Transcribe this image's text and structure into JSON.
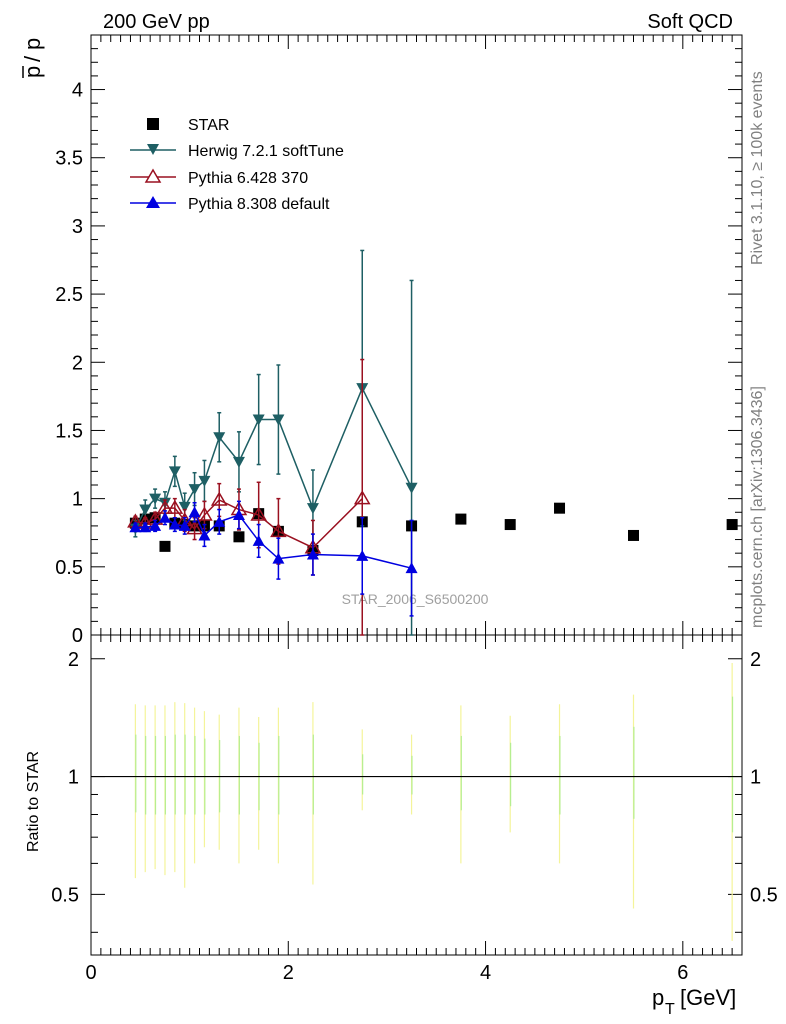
{
  "header": {
    "left": "200 GeV pp",
    "right": "Soft QCD"
  },
  "side": {
    "rivet": "Rivet 3.1.10, ≥ 100k events",
    "mcplots": "mcplots.cern.ch [arXiv:1306.3436]"
  },
  "watermark": "STAR_2006_S6500200",
  "chart_data": [
    {
      "type": "scatter",
      "ylabel_top": "p",
      "ylabel_bottom": "p",
      "ylabel_text": "p̅ / p",
      "xlim": [
        0,
        6.6
      ],
      "ylim": [
        0,
        4.4
      ],
      "yticks": [
        "0",
        "0.5",
        "1",
        "1.5",
        "2",
        "2.5",
        "3",
        "3.5",
        "4"
      ],
      "legend_position": "top-left",
      "series": [
        {
          "name": "STAR",
          "color": "#000000",
          "marker": "square",
          "x": [
            0.45,
            0.55,
            0.65,
            0.75,
            0.85,
            0.95,
            1.05,
            1.15,
            1.3,
            1.5,
            1.7,
            1.9,
            2.25,
            2.75,
            3.25,
            3.75,
            4.25,
            4.75,
            5.5,
            6.5
          ],
          "y": [
            0.82,
            0.85,
            0.86,
            0.65,
            0.82,
            0.81,
            0.8,
            0.8,
            0.8,
            0.72,
            0.89,
            0.76,
            0.62,
            0.83,
            0.8,
            0.85,
            0.81,
            0.93,
            0.73,
            0.81
          ]
        },
        {
          "name": "Herwig 7.2.1 softTune",
          "color": "#1e5f64",
          "marker": "triangle-down",
          "x": [
            0.45,
            0.55,
            0.65,
            0.75,
            0.85,
            0.95,
            1.05,
            1.15,
            1.3,
            1.5,
            1.7,
            1.9,
            2.25,
            2.75,
            3.25
          ],
          "y": [
            0.78,
            0.92,
            1.0,
            0.97,
            1.2,
            0.94,
            1.07,
            1.13,
            1.45,
            1.27,
            1.58,
            1.58,
            0.93,
            1.81,
            1.08
          ],
          "err": [
            0.06,
            0.07,
            0.07,
            0.08,
            0.11,
            0.1,
            0.12,
            0.15,
            0.18,
            0.22,
            0.33,
            0.4,
            0.28,
            1.01,
            1.52
          ]
        },
        {
          "name": "Pythia 6.428 370",
          "color": "#9a1020",
          "marker": "triangle-open",
          "x": [
            0.45,
            0.55,
            0.65,
            0.75,
            0.85,
            0.95,
            1.05,
            1.15,
            1.3,
            1.5,
            1.7,
            1.9,
            2.25,
            2.75
          ],
          "y": [
            0.83,
            0.82,
            0.85,
            0.93,
            0.93,
            0.84,
            0.78,
            0.88,
            0.99,
            0.92,
            0.88,
            0.76,
            0.64,
            1.0
          ],
          "err": [
            0.04,
            0.04,
            0.05,
            0.06,
            0.07,
            0.08,
            0.08,
            0.1,
            0.12,
            0.15,
            0.24,
            0.24,
            0.2,
            1.02
          ]
        },
        {
          "name": "Pythia 8.308 default",
          "color": "#0000e0",
          "marker": "triangle-up",
          "x": [
            0.45,
            0.55,
            0.65,
            0.75,
            0.85,
            0.95,
            1.05,
            1.15,
            1.3,
            1.5,
            1.7,
            1.9,
            2.25,
            2.75,
            3.25
          ],
          "y": [
            0.79,
            0.79,
            0.8,
            0.86,
            0.81,
            0.8,
            0.9,
            0.73,
            0.83,
            0.88,
            0.69,
            0.56,
            0.59,
            0.58,
            0.49
          ],
          "err": [
            0.03,
            0.03,
            0.04,
            0.05,
            0.05,
            0.06,
            0.07,
            0.08,
            0.09,
            0.1,
            0.12,
            0.15,
            0.15,
            0.28,
            0.35
          ]
        }
      ]
    },
    {
      "type": "scatter",
      "ylabel": "Ratio to STAR",
      "xlabel": "p_T [GeV]",
      "xlabel_main": "p",
      "xlabel_sub": "T",
      "xlabel_unit": "[GeV]",
      "xlim": [
        0,
        6.6
      ],
      "ylim": [
        0.35,
        2.3
      ],
      "xticks": [
        "0",
        "2",
        "4",
        "6"
      ],
      "yticks": [
        "0.5",
        "1",
        "2"
      ],
      "reference_line": 1,
      "bands": {
        "x": [
          0.45,
          0.55,
          0.65,
          0.75,
          0.85,
          0.95,
          1.05,
          1.15,
          1.3,
          1.5,
          1.7,
          1.9,
          2.25,
          2.75,
          3.25,
          3.75,
          4.25,
          4.75,
          5.5,
          6.5
        ],
        "yellow_lo": [
          0.55,
          0.57,
          0.58,
          0.56,
          0.57,
          0.52,
          0.6,
          0.66,
          0.65,
          0.6,
          0.65,
          0.6,
          0.53,
          0.82,
          0.8,
          0.6,
          0.72,
          0.6,
          0.46,
          0.38
        ],
        "yellow_hi": [
          1.53,
          1.52,
          1.52,
          1.52,
          1.55,
          1.54,
          1.5,
          1.47,
          1.44,
          1.5,
          1.42,
          1.5,
          1.55,
          1.32,
          1.28,
          1.52,
          1.43,
          1.53,
          1.62,
          1.95
        ],
        "green_lo": [
          0.81,
          0.8,
          0.8,
          0.8,
          0.8,
          0.8,
          0.8,
          0.8,
          0.81,
          0.8,
          0.82,
          0.8,
          0.8,
          0.9,
          0.9,
          0.82,
          0.84,
          0.8,
          0.78,
          0.72
        ],
        "green_hi": [
          1.28,
          1.27,
          1.27,
          1.27,
          1.28,
          1.28,
          1.27,
          1.25,
          1.24,
          1.27,
          1.22,
          1.27,
          1.28,
          1.14,
          1.13,
          1.27,
          1.22,
          1.27,
          1.34,
          1.6
        ]
      }
    }
  ]
}
